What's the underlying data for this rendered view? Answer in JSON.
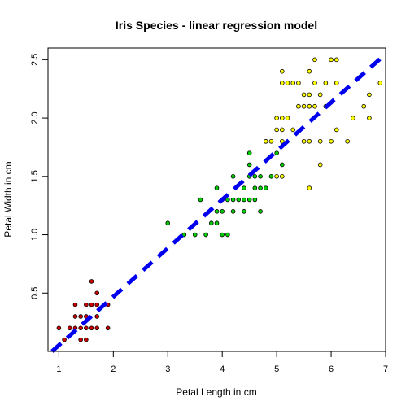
{
  "chart_data": {
    "type": "scatter",
    "title": "Iris Species - linear regression model",
    "xlabel": "Petal Length in cm",
    "ylabel": "Petal Width in cm",
    "xlim": [
      0.8,
      7.0
    ],
    "ylim": [
      0.0,
      2.6
    ],
    "xticks": [
      "1",
      "2",
      "3",
      "4",
      "5",
      "6",
      "7"
    ],
    "yticks": [
      "0.5",
      "1.0",
      "1.5",
      "2.0",
      "2.5"
    ],
    "grid": false,
    "legend": "none",
    "series": [
      {
        "color": "#cc0000",
        "points": [
          [
            1.0,
            0.2
          ],
          [
            1.1,
            0.1
          ],
          [
            1.2,
            0.2
          ],
          [
            1.3,
            0.2
          ],
          [
            1.3,
            0.3
          ],
          [
            1.3,
            0.4
          ],
          [
            1.4,
            0.1
          ],
          [
            1.4,
            0.2
          ],
          [
            1.4,
            0.3
          ],
          [
            1.5,
            0.1
          ],
          [
            1.5,
            0.2
          ],
          [
            1.5,
            0.3
          ],
          [
            1.5,
            0.4
          ],
          [
            1.6,
            0.2
          ],
          [
            1.6,
            0.4
          ],
          [
            1.6,
            0.6
          ],
          [
            1.7,
            0.2
          ],
          [
            1.7,
            0.3
          ],
          [
            1.7,
            0.4
          ],
          [
            1.7,
            0.5
          ],
          [
            1.9,
            0.2
          ],
          [
            1.9,
            0.4
          ]
        ]
      },
      {
        "color": "#00cc00",
        "points": [
          [
            3.0,
            1.1
          ],
          [
            3.3,
            1.0
          ],
          [
            3.5,
            1.0
          ],
          [
            3.6,
            1.3
          ],
          [
            3.7,
            1.0
          ],
          [
            3.8,
            1.1
          ],
          [
            3.9,
            1.1
          ],
          [
            3.9,
            1.2
          ],
          [
            3.9,
            1.4
          ],
          [
            4.0,
            1.0
          ],
          [
            4.0,
            1.2
          ],
          [
            4.0,
            1.3
          ],
          [
            4.1,
            1.0
          ],
          [
            4.1,
            1.3
          ],
          [
            4.2,
            1.2
          ],
          [
            4.2,
            1.3
          ],
          [
            4.2,
            1.5
          ],
          [
            4.3,
            1.3
          ],
          [
            4.4,
            1.2
          ],
          [
            4.4,
            1.3
          ],
          [
            4.4,
            1.4
          ],
          [
            4.5,
            1.3
          ],
          [
            4.5,
            1.5
          ],
          [
            4.6,
            1.3
          ],
          [
            4.6,
            1.4
          ],
          [
            4.6,
            1.5
          ],
          [
            4.7,
            1.2
          ],
          [
            4.7,
            1.4
          ],
          [
            4.7,
            1.5
          ],
          [
            4.8,
            1.4
          ],
          [
            4.8,
            1.8
          ],
          [
            4.9,
            1.5
          ],
          [
            5.0,
            1.7
          ],
          [
            5.1,
            1.6
          ],
          [
            4.5,
            1.6
          ],
          [
            4.5,
            1.7
          ]
        ]
      },
      {
        "color": "#ffff00",
        "points": [
          [
            4.8,
            1.8
          ],
          [
            4.9,
            1.8
          ],
          [
            5.0,
            1.5
          ],
          [
            5.0,
            1.9
          ],
          [
            5.0,
            2.0
          ],
          [
            5.1,
            1.5
          ],
          [
            5.1,
            1.8
          ],
          [
            5.1,
            1.9
          ],
          [
            5.1,
            2.0
          ],
          [
            5.1,
            2.3
          ],
          [
            5.1,
            2.4
          ],
          [
            5.2,
            2.0
          ],
          [
            5.2,
            2.3
          ],
          [
            5.3,
            1.9
          ],
          [
            5.3,
            2.3
          ],
          [
            5.4,
            2.1
          ],
          [
            5.4,
            2.3
          ],
          [
            5.5,
            1.8
          ],
          [
            5.5,
            2.1
          ],
          [
            5.5,
            2.2
          ],
          [
            5.6,
            1.4
          ],
          [
            5.6,
            1.8
          ],
          [
            5.6,
            2.1
          ],
          [
            5.6,
            2.2
          ],
          [
            5.6,
            2.4
          ],
          [
            5.7,
            2.1
          ],
          [
            5.7,
            2.3
          ],
          [
            5.7,
            2.5
          ],
          [
            5.8,
            1.6
          ],
          [
            5.8,
            1.8
          ],
          [
            5.8,
            2.2
          ],
          [
            5.9,
            2.1
          ],
          [
            5.9,
            2.3
          ],
          [
            6.0,
            1.8
          ],
          [
            6.0,
            2.5
          ],
          [
            6.1,
            1.9
          ],
          [
            6.1,
            2.3
          ],
          [
            6.1,
            2.5
          ],
          [
            6.3,
            1.8
          ],
          [
            6.4,
            2.0
          ],
          [
            6.6,
            2.1
          ],
          [
            6.7,
            2.0
          ],
          [
            6.7,
            2.2
          ],
          [
            6.9,
            2.3
          ]
        ]
      }
    ],
    "regression_line": {
      "intercept": -0.363,
      "slope": 0.416,
      "color": "#0000ee"
    }
  }
}
